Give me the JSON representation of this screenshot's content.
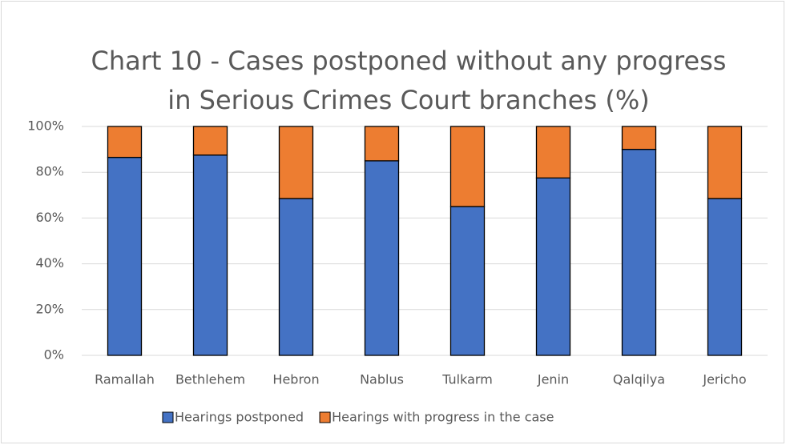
{
  "chart_data": {
    "type": "stacked_bar",
    "title": [
      "Chart 10 - Cases postponed without any progress",
      "in Serious Crimes Court branches (%)"
    ],
    "categories": [
      "Ramallah",
      "Bethlehem",
      "Hebron",
      "Nablus",
      "Tulkarm",
      "Jenin",
      "Qalqilya",
      "Jericho"
    ],
    "series": [
      {
        "name": "Hearings postponed",
        "color": "#4472c4",
        "values": [
          86.5,
          87.5,
          68.5,
          85,
          65,
          77.5,
          90,
          68.5
        ]
      },
      {
        "name": "Hearings with progress in the case",
        "color": "#ed7d31",
        "values": [
          13.5,
          12.5,
          31.5,
          15,
          35,
          22.5,
          10,
          31.5
        ]
      }
    ],
    "ylim": [
      0,
      100
    ],
    "yticks": [
      {
        "value": 0,
        "label": "0%"
      },
      {
        "value": 20,
        "label": "20%"
      },
      {
        "value": 40,
        "label": "40%"
      },
      {
        "value": 60,
        "label": "60%"
      },
      {
        "value": 80,
        "label": "80%"
      },
      {
        "value": 100,
        "label": "100%"
      }
    ],
    "grid": true,
    "legend": "bottom"
  }
}
